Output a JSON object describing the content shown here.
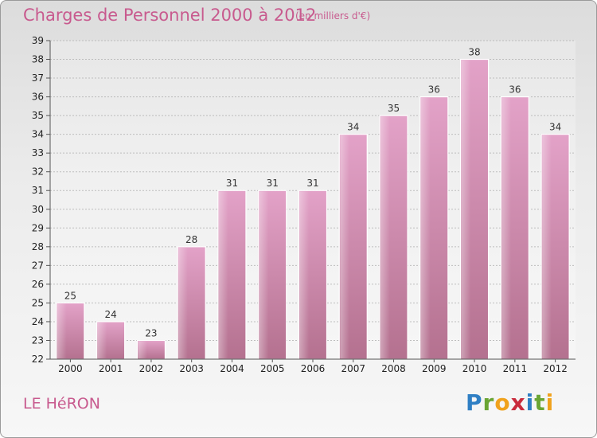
{
  "header": {
    "title": "Charges de Personnel 2000 à 2012",
    "subtitle": "(en milliers d'€)"
  },
  "footer": {
    "commune": "LE HéRON",
    "brand_letters": [
      {
        "char": "P",
        "color": "#2f7fc4"
      },
      {
        "char": "r",
        "color": "#6aa534"
      },
      {
        "char": "o",
        "color": "#f0a21c"
      },
      {
        "char": "x",
        "color": "#c92b3c"
      },
      {
        "char": "i",
        "color": "#2f7fc4"
      },
      {
        "char": "t",
        "color": "#6aa534"
      },
      {
        "char": "i",
        "color": "#f0a21c"
      }
    ]
  },
  "colors": {
    "bar": "#e3a2c8",
    "bar_dark": "#b4718f",
    "accent": "#c85a8e"
  },
  "chart_data": {
    "type": "bar",
    "title": "Charges de Personnel 2000 à 2012",
    "subtitle": "(en milliers d'€)",
    "categories": [
      "2000",
      "2001",
      "2002",
      "2003",
      "2004",
      "2005",
      "2006",
      "2007",
      "2008",
      "2009",
      "2010",
      "2011",
      "2012"
    ],
    "values": [
      25,
      24,
      23,
      28,
      31,
      31,
      31,
      34,
      35,
      36,
      38,
      36,
      34
    ],
    "ylim": [
      22,
      39
    ],
    "yticks": [
      22,
      23,
      24,
      25,
      26,
      27,
      28,
      29,
      30,
      31,
      32,
      33,
      34,
      35,
      36,
      37,
      38,
      39
    ],
    "grid": true,
    "data_labels": true
  }
}
